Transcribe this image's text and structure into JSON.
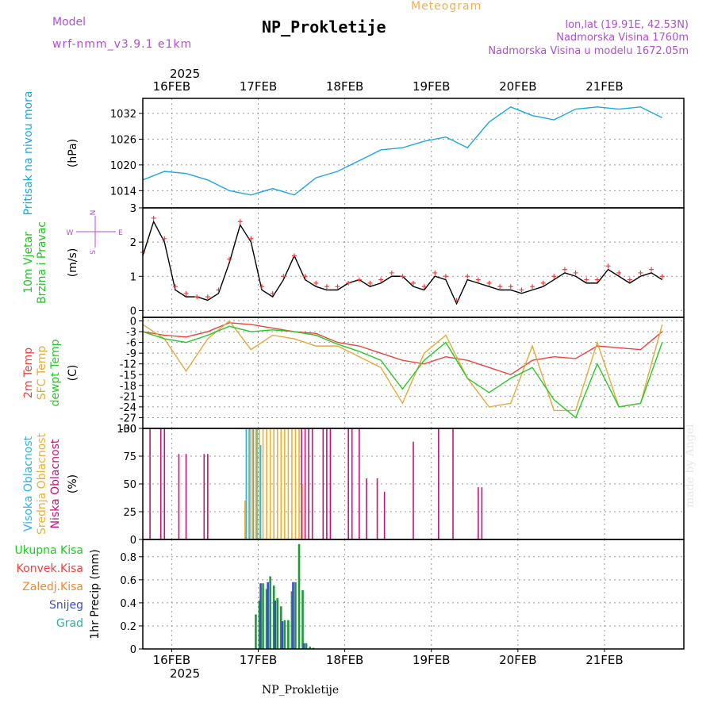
{
  "header": {
    "model_label": "Model",
    "model_name": "wrf-nmm_v3.9.1  e1km",
    "center_title": "Meteogram",
    "station_title": "NP_Prokletije",
    "coords": "lon,lat (19.91E, 42.53N)",
    "elevation": "Nadmorska Visina 1760m",
    "model_elevation": "Nadmorska Visina u modelu 1672.05m",
    "year_top": "2025",
    "year_bottom": "2025",
    "footer_station": "NP_Prokletije",
    "watermark": "made by Angel"
  },
  "colors": {
    "pressure": "#1aa7e6",
    "temp2m": "#f0403c",
    "sfc": "#e3a93a",
    "dewpt": "#28c828",
    "high_cloud": "#2ab5ec",
    "mid_cloud": "#f0b030",
    "low_cloud": "#c8127a",
    "total_precip": "#1e9a3a",
    "snow": "#3a4cc8",
    "wind_line": "#000000",
    "gust_marker": "#f0403c"
  },
  "chart_data": [
    {
      "type": "line",
      "panel": "pressure",
      "ylabel_side": "Pritisak na nivou mora",
      "ylabel_unit": "(hPa)",
      "yticks": [
        1014,
        1020,
        1026,
        1032
      ],
      "ylim": [
        1010,
        1035.5
      ],
      "date_ticks": [
        "16FEB",
        "17FEB",
        "18FEB",
        "19FEB",
        "20FEB",
        "21FEB"
      ],
      "x_hours": [
        0,
        6,
        12,
        18,
        24,
        30,
        36,
        42,
        48,
        54,
        60,
        66,
        72,
        78,
        84,
        90,
        96,
        102,
        108,
        114,
        120,
        126,
        132,
        138,
        144
      ],
      "series": [
        {
          "values": [
            1016.5,
            1018.5,
            1018.0,
            1016.5,
            1014.0,
            1013.0,
            1014.5,
            1013.0,
            1017.0,
            1018.5,
            1021.0,
            1023.5,
            1024.0,
            1025.5,
            1026.5,
            1024.0,
            1030.0,
            1033.5,
            1031.5,
            1030.5,
            1033.0,
            1033.5,
            1033.0,
            1033.5,
            1031.0
          ]
        }
      ],
      "grid": true
    },
    {
      "type": "line",
      "panel": "wind",
      "ylabel_side": [
        "10m Vjetar",
        "Brzina i Pravac"
      ],
      "ylabel_unit": "(m/s)",
      "compass": {
        "n": "N",
        "s": "S",
        "w": "W",
        "e": "E"
      },
      "yticks": [
        0,
        1,
        2,
        3
      ],
      "ylim": [
        -0.2,
        3.0
      ],
      "x_hours": [
        0,
        3,
        6,
        9,
        12,
        15,
        18,
        21,
        24,
        27,
        30,
        33,
        36,
        39,
        42,
        45,
        48,
        51,
        54,
        57,
        60,
        63,
        66,
        69,
        72,
        75,
        78,
        81,
        84,
        87,
        90,
        93,
        96,
        99,
        102,
        105,
        108,
        111,
        114,
        117,
        120,
        123,
        126,
        129,
        132,
        135,
        138,
        141,
        144
      ],
      "series": [
        {
          "name": "speed",
          "values": [
            1.6,
            2.6,
            2.0,
            0.6,
            0.4,
            0.4,
            0.3,
            0.5,
            1.4,
            2.5,
            2.0,
            0.6,
            0.4,
            0.9,
            1.6,
            0.9,
            0.7,
            0.6,
            0.6,
            0.8,
            0.9,
            0.7,
            0.8,
            1.0,
            1.0,
            0.7,
            0.6,
            1.0,
            0.9,
            0.2,
            0.9,
            0.8,
            0.7,
            0.6,
            0.6,
            0.5,
            0.6,
            0.7,
            0.9,
            1.1,
            1.0,
            0.8,
            0.8,
            1.2,
            1.0,
            0.8,
            1.0,
            1.1,
            0.9
          ]
        },
        {
          "name": "gust",
          "values": [
            1.7,
            2.7,
            2.1,
            0.7,
            0.5,
            0.4,
            0.4,
            0.6,
            1.5,
            2.6,
            2.1,
            0.7,
            0.5,
            1.0,
            1.6,
            1.0,
            0.8,
            0.7,
            0.7,
            0.8,
            0.9,
            0.8,
            0.9,
            1.1,
            1.0,
            0.8,
            0.7,
            1.1,
            1.0,
            0.3,
            1.0,
            0.9,
            0.8,
            0.7,
            0.7,
            0.6,
            0.7,
            0.8,
            1.0,
            1.2,
            1.1,
            0.9,
            0.9,
            1.3,
            1.1,
            0.9,
            1.1,
            1.2,
            1.0
          ]
        }
      ],
      "grid": true
    },
    {
      "type": "line",
      "panel": "temperature",
      "ylabel_side": [
        "2m Temp",
        "SFC Temp",
        "dewpt Temp"
      ],
      "ylabel_unit": "(C)",
      "yticks": [
        0,
        -3,
        -6,
        -9,
        -12,
        -15,
        -18,
        -21,
        -24,
        -27,
        -30
      ],
      "ylim": [
        -30,
        1
      ],
      "x_hours": [
        0,
        6,
        12,
        18,
        24,
        30,
        36,
        42,
        48,
        54,
        60,
        66,
        72,
        78,
        84,
        90,
        96,
        102,
        108,
        114,
        120,
        126,
        132,
        138,
        144
      ],
      "series": [
        {
          "name": "2m",
          "values": [
            -3,
            -4,
            -4.5,
            -3,
            -0.5,
            -1,
            -2,
            -3,
            -3.5,
            -6,
            -7,
            -9,
            -11,
            -12,
            -10,
            -11,
            -13,
            -15,
            -11,
            -10,
            -10.5,
            -7,
            -7.5,
            -8,
            -3
          ]
        },
        {
          "name": "SFC",
          "values": [
            -1,
            -5,
            -14,
            -5,
            0,
            -8,
            -4,
            -5,
            -7,
            -7,
            -10,
            -13,
            -23,
            -9,
            -4,
            -16,
            -24,
            -23,
            -7,
            -25,
            -25,
            -6,
            -24,
            -23,
            -1
          ]
        },
        {
          "name": "dewpt",
          "values": [
            -3,
            -5,
            -6,
            -4,
            -1.5,
            -3,
            -2.5,
            -3,
            -4,
            -6.5,
            -8.5,
            -11,
            -19,
            -11,
            -6,
            -16,
            -20,
            -16,
            -13,
            -22,
            -27,
            -12,
            -24,
            -23,
            -6
          ]
        }
      ],
      "grid": true
    },
    {
      "type": "bar",
      "panel": "clouds",
      "ylabel_side": [
        "Visoka Oblacnost",
        "Srednja Oblacnost",
        "Niska Oblacnost"
      ],
      "ylabel_unit": "(%)",
      "yticks": [
        0,
        25,
        50,
        75,
        100
      ],
      "ylim": [
        0,
        100
      ],
      "x_hours": [
        0,
        1,
        2,
        3,
        4,
        5,
        6,
        7,
        8,
        9,
        10,
        11,
        12,
        13,
        14,
        15,
        16,
        17,
        18,
        19,
        20,
        21,
        22,
        23,
        24,
        25,
        26,
        27,
        28,
        29,
        30,
        31,
        32,
        33,
        34,
        35,
        36,
        37,
        38,
        39,
        40,
        41,
        42,
        43,
        44,
        45,
        46,
        47,
        48,
        49,
        50,
        51,
        52,
        53,
        54,
        55,
        56,
        57,
        58,
        59,
        60,
        61,
        62,
        63,
        64,
        65,
        66,
        67,
        68,
        69,
        70,
        71,
        72,
        73,
        74,
        75,
        76,
        77,
        78,
        79,
        80,
        81,
        82,
        83,
        84,
        85,
        86,
        87,
        88,
        89,
        90,
        91,
        92,
        93,
        94,
        95,
        96,
        97,
        98,
        99,
        100,
        101,
        102,
        103,
        104,
        105,
        106,
        107,
        108,
        109,
        110,
        111,
        112,
        113,
        114,
        115,
        116,
        117,
        118,
        119,
        120,
        121,
        122,
        123,
        124,
        125,
        126,
        127,
        128,
        129,
        130,
        131,
        132,
        133,
        134,
        135,
        136,
        137,
        138,
        139,
        140,
        141,
        142,
        143,
        144
      ],
      "series": [
        {
          "name": "low",
          "values": [
            0,
            0,
            100,
            0,
            0,
            100,
            100,
            0,
            0,
            0,
            77,
            0,
            77,
            0,
            0,
            0,
            0,
            77,
            77,
            0,
            0,
            0,
            0,
            0,
            0,
            0,
            0,
            0,
            0,
            0,
            0,
            0,
            0,
            0,
            0,
            0,
            0,
            0,
            0,
            0,
            0,
            0,
            0,
            0,
            100,
            100,
            100,
            100,
            0,
            0,
            100,
            100,
            100,
            0,
            0,
            0,
            0,
            100,
            100,
            0,
            100,
            0,
            55,
            0,
            0,
            55,
            0,
            43,
            0,
            0,
            0,
            0,
            0,
            0,
            0,
            88,
            0,
            0,
            0,
            0,
            0,
            0,
            100,
            0,
            0,
            0,
            100,
            0,
            0,
            0,
            0,
            0,
            0,
            47,
            47,
            0,
            0,
            0,
            0,
            0,
            0,
            0,
            0,
            0,
            0,
            0,
            0,
            0,
            0,
            0,
            0,
            0,
            0,
            0,
            0,
            0,
            0,
            0,
            0,
            0,
            0,
            0,
            0,
            0,
            0,
            0,
            0,
            0,
            0,
            0,
            0,
            0,
            0,
            0,
            0,
            0,
            0,
            0,
            0,
            0,
            0,
            0,
            0,
            0,
            0
          ]
        },
        {
          "name": "high",
          "values": [
            0,
            0,
            0,
            0,
            0,
            0,
            0,
            0,
            0,
            0,
            0,
            0,
            0,
            0,
            0,
            0,
            0,
            0,
            0,
            0,
            0,
            0,
            0,
            0,
            0,
            0,
            0,
            0,
            0,
            100,
            100,
            100,
            100,
            85,
            0,
            0,
            0,
            0,
            0,
            0,
            0,
            0,
            0,
            0,
            0,
            0,
            0,
            0,
            0,
            0,
            0,
            0,
            0,
            0,
            0,
            0,
            0,
            0,
            0,
            0,
            0,
            0,
            0,
            0,
            0,
            0,
            0,
            0,
            0,
            0,
            0,
            0,
            0,
            0,
            0,
            0,
            0,
            0,
            0,
            0,
            0,
            0,
            0,
            0,
            0,
            0,
            0,
            0,
            0,
            0,
            0,
            0,
            0,
            0,
            0,
            0,
            0,
            0,
            0,
            0,
            0,
            0,
            0,
            0,
            0,
            0,
            0,
            0,
            0,
            0,
            0,
            0,
            0,
            0,
            0,
            0,
            0,
            0,
            0,
            0,
            0,
            0,
            0,
            0,
            0,
            0,
            0,
            0,
            0,
            0,
            0,
            0,
            0,
            0,
            0,
            0,
            0,
            0,
            0,
            0,
            0,
            0,
            0,
            0,
            0
          ]
        },
        {
          "name": "mid",
          "values": [
            0,
            0,
            0,
            0,
            0,
            0,
            0,
            0,
            0,
            0,
            0,
            0,
            0,
            0,
            0,
            0,
            0,
            0,
            0,
            0,
            0,
            0,
            0,
            0,
            0,
            0,
            0,
            0,
            35,
            100,
            100,
            100,
            100,
            100,
            100,
            100,
            100,
            100,
            100,
            100,
            100,
            100,
            100,
            100,
            50,
            0,
            0,
            0,
            0,
            0,
            0,
            0,
            0,
            0,
            0,
            0,
            0,
            0,
            0,
            0,
            0,
            0,
            0,
            0,
            0,
            0,
            0,
            0,
            0,
            0,
            0,
            0,
            0,
            0,
            0,
            0,
            0,
            0,
            0,
            0,
            0,
            0,
            0,
            0,
            0,
            0,
            0,
            0,
            0,
            0,
            0,
            0,
            0,
            0,
            0,
            0,
            0,
            0,
            0,
            0,
            0,
            0,
            0,
            0,
            0,
            0,
            0,
            0,
            0,
            0,
            0,
            0,
            0,
            0,
            0,
            0,
            0,
            0,
            0,
            0,
            0,
            0,
            0,
            0,
            0,
            0,
            0,
            0,
            0,
            0,
            0,
            0,
            0,
            0,
            0,
            0,
            0,
            0,
            0,
            0,
            0,
            0,
            0,
            0,
            0
          ]
        }
      ],
      "grid": true
    },
    {
      "type": "bar",
      "panel": "precip",
      "legend": [
        "Ukupna Kisa",
        "Konvek.Kisa",
        "Zaledj.Kisa",
        "Snijeg",
        "Grad"
      ],
      "legend_colors": [
        "#1ec81e",
        "#f0403c",
        "#f08a30",
        "#3a4cc8",
        "#28b4a0"
      ],
      "ylabel_side": "1hr Precip (mm)",
      "yticks": [
        0,
        0.2,
        0.4,
        0.6,
        0.8
      ],
      "ylim": [
        0,
        0.95
      ],
      "x_hours": [
        31,
        32,
        33,
        34,
        35,
        36,
        37,
        38,
        39,
        40,
        41,
        42,
        43,
        44,
        45,
        46,
        47
      ],
      "series": [
        {
          "name": "total",
          "values": [
            0.3,
            0.42,
            0.57,
            0.52,
            0.63,
            0.55,
            0.44,
            0.37,
            0.25,
            0.25,
            0.5,
            0.58,
            0.91,
            0.51,
            0.05,
            0.02,
            0.01
          ]
        },
        {
          "name": "snow",
          "values": [
            0.0,
            0.0,
            0.57,
            0.0,
            0.58,
            0.0,
            0.42,
            0.0,
            0.24,
            0.0,
            0.0,
            0.58,
            0.0,
            0.0,
            0.05,
            0.0,
            0.0
          ]
        }
      ],
      "grid": true
    }
  ]
}
